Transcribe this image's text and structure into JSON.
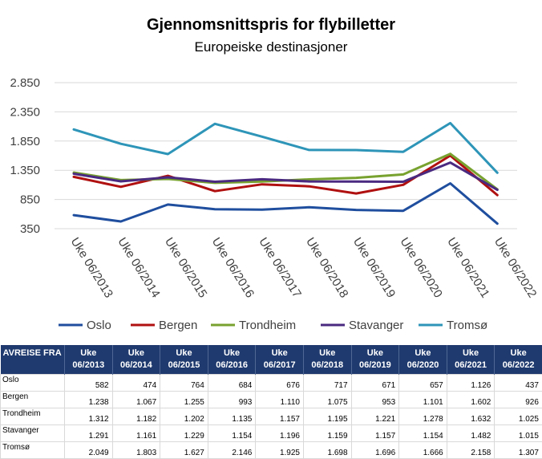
{
  "chart_data": {
    "type": "line",
    "title": "Gjennomsnittspris for flybilletter",
    "subtitle": "Europeiske destinasjoner",
    "categories": [
      "Uke 06/2013",
      "Uke 06/2014",
      "Uke 06/2015",
      "Uke 06/2016",
      "Uke 06/2017",
      "Uke 06/2018",
      "Uke 06/2019",
      "Uke 06/2020",
      "Uke 06/2021",
      "Uke 06/2022"
    ],
    "series": [
      {
        "name": "Oslo",
        "color": "#1f4e9e",
        "values": [
          582,
          474,
          764,
          684,
          676,
          717,
          671,
          657,
          1126,
          437
        ]
      },
      {
        "name": "Bergen",
        "color": "#b01010",
        "values": [
          1238,
          1067,
          1255,
          993,
          1110,
          1075,
          953,
          1101,
          1602,
          926
        ]
      },
      {
        "name": "Trondheim",
        "color": "#78a22f",
        "values": [
          1312,
          1182,
          1202,
          1135,
          1157,
          1195,
          1221,
          1278,
          1632,
          1025
        ]
      },
      {
        "name": "Stavanger",
        "color": "#4a2a80",
        "values": [
          1291,
          1161,
          1229,
          1154,
          1196,
          1159,
          1157,
          1154,
          1482,
          1015
        ]
      },
      {
        "name": "Tromsø",
        "color": "#2e95b8",
        "values": [
          2049,
          1803,
          1627,
          2146,
          1925,
          1698,
          1696,
          1666,
          2158,
          1307
        ]
      }
    ],
    "ylim": [
      350,
      2850
    ],
    "yticks": [
      350,
      850,
      1350,
      1850,
      2350,
      2850
    ],
    "grid": true,
    "legend": "bottom"
  },
  "table": {
    "header_label": "AVREISE FRA",
    "header_color": "#1f3a6e"
  }
}
